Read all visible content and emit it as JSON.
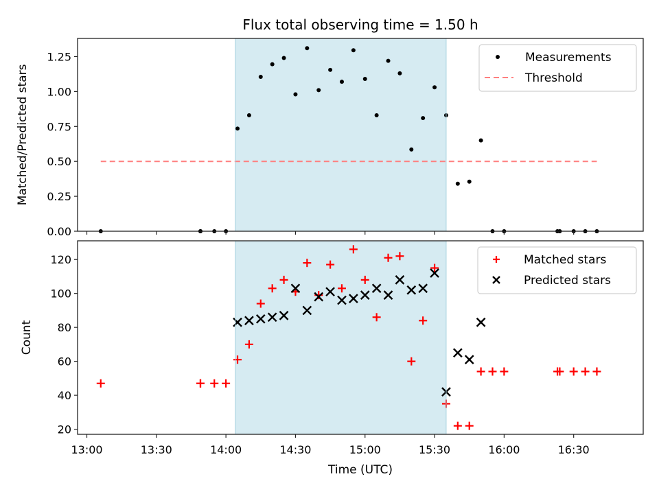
{
  "chart_data": [
    {
      "type": "scatter",
      "title": "Flux total observing time = 1.50 h",
      "xlabel": "",
      "ylabel": "Matched/Predicted stars",
      "xlim": [
        "12:56",
        "17:00"
      ],
      "ylim": [
        0,
        1.38
      ],
      "yticks": [
        "0.00",
        "0.25",
        "0.50",
        "0.75",
        "1.00",
        "1.25"
      ],
      "ytick_values": [
        0,
        0.25,
        0.5,
        0.75,
        1.0,
        1.25
      ],
      "xticks": [
        "13:00",
        "13:30",
        "14:00",
        "14:30",
        "15:00",
        "15:30",
        "16:00",
        "16:30"
      ],
      "shaded_span": {
        "start": "14:04",
        "end": "15:35",
        "color": "#add8e6"
      },
      "legend": {
        "placement": "top-right",
        "entries": [
          "Measurements",
          "Threshold"
        ]
      },
      "series": [
        {
          "name": "Measurements",
          "kind": "points",
          "color": "#000000",
          "x": [
            "13:06",
            "13:49",
            "13:49",
            "13:55",
            "14:00",
            "14:05",
            "14:10",
            "14:15",
            "14:20",
            "14:25",
            "14:30",
            "14:35",
            "14:40",
            "14:45",
            "14:50",
            "14:55",
            "15:00",
            "15:05",
            "15:10",
            "15:15",
            "15:20",
            "15:25",
            "15:30",
            "15:35",
            "15:40",
            "15:45",
            "15:50",
            "15:55",
            "16:00",
            "16:23",
            "16:24",
            "16:30",
            "16:35",
            "16:40"
          ],
          "y": [
            0,
            0,
            0,
            0,
            0,
            0.735,
            0.83,
            1.105,
            1.195,
            1.24,
            0.98,
            1.31,
            1.01,
            1.155,
            1.07,
            1.295,
            1.09,
            0.83,
            1.22,
            1.13,
            0.585,
            0.81,
            1.03,
            0.83,
            0.34,
            0.355,
            0.65,
            0,
            0,
            0,
            0,
            0,
            0,
            0
          ]
        },
        {
          "name": "Threshold",
          "kind": "dashed-line",
          "color": "#ff7f7f",
          "x": [
            "13:06",
            "16:40"
          ],
          "y": [
            0.5,
            0.5
          ]
        }
      ]
    },
    {
      "type": "scatter",
      "title": "",
      "xlabel": "Time (UTC)",
      "ylabel": "Count",
      "xlim": [
        "12:56",
        "17:00"
      ],
      "ylim": [
        17,
        131
      ],
      "yticks": [
        "20",
        "40",
        "60",
        "80",
        "100",
        "120"
      ],
      "ytick_values": [
        20,
        40,
        60,
        80,
        100,
        120
      ],
      "xticks": [
        "13:00",
        "13:30",
        "14:00",
        "14:30",
        "15:00",
        "15:30",
        "16:00",
        "16:30"
      ],
      "shaded_span": {
        "start": "14:04",
        "end": "15:35",
        "color": "#add8e6"
      },
      "legend": {
        "placement": "top-right",
        "entries": [
          "Matched stars",
          "Predicted stars"
        ]
      },
      "series": [
        {
          "name": "Matched stars",
          "marker": "plus",
          "color": "#ff0000",
          "x": [
            "13:06",
            "13:49",
            "13:49",
            "13:55",
            "14:00",
            "14:05",
            "14:10",
            "14:15",
            "14:20",
            "14:25",
            "14:30",
            "14:35",
            "14:40",
            "14:45",
            "14:50",
            "14:55",
            "15:00",
            "15:05",
            "15:10",
            "15:15",
            "15:20",
            "15:25",
            "15:30",
            "15:35",
            "15:40",
            "15:45",
            "15:50",
            "15:55",
            "16:00",
            "16:23",
            "16:24",
            "16:30",
            "16:35",
            "16:40"
          ],
          "y": [
            47,
            47,
            47,
            47,
            47,
            61,
            70,
            94,
            103,
            108,
            101,
            118,
            99,
            117,
            103,
            126,
            108,
            86,
            121,
            122,
            60,
            84,
            115,
            35,
            22,
            22,
            54,
            54,
            54,
            54,
            54,
            54,
            54,
            54
          ]
        },
        {
          "name": "Predicted stars",
          "marker": "x",
          "color": "#000000",
          "x": [
            "14:05",
            "14:10",
            "14:15",
            "14:20",
            "14:25",
            "14:30",
            "14:35",
            "14:40",
            "14:45",
            "14:50",
            "14:55",
            "15:00",
            "15:05",
            "15:10",
            "15:15",
            "15:20",
            "15:25",
            "15:30",
            "15:35",
            "15:40",
            "15:45",
            "15:50"
          ],
          "y": [
            83,
            84,
            85,
            86,
            87,
            103,
            90,
            98,
            101,
            96,
            97,
            99,
            103,
            99,
            108,
            102,
            103,
            112,
            42,
            65,
            61,
            83
          ]
        }
      ]
    }
  ]
}
